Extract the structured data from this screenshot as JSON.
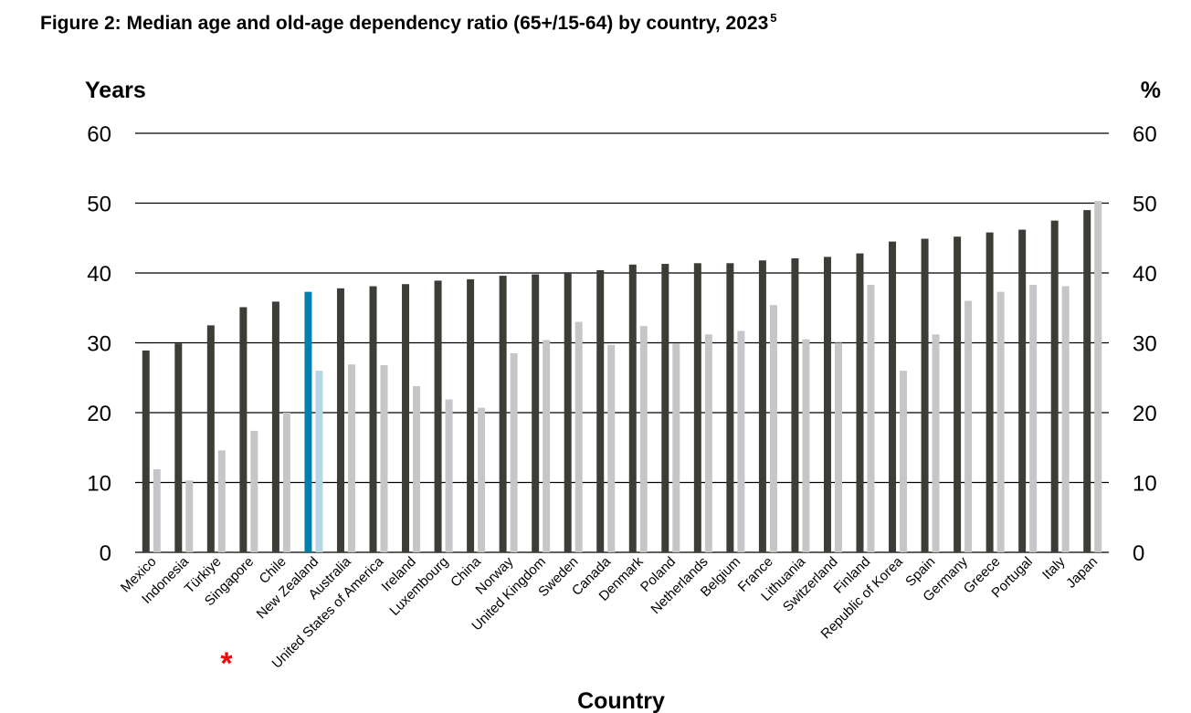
{
  "chart_data": {
    "type": "bar",
    "title": "Figure 2: Median age and old-age dependency ratio (65+/15-64) by country, 2023",
    "title_footnote": "5",
    "xlabel": "Country",
    "ylabel_left": "Years",
    "ylabel_right": "%",
    "ylim": [
      0,
      60
    ],
    "yticks": [
      0,
      10,
      20,
      30,
      40,
      50,
      60
    ],
    "grid": true,
    "legend": "none",
    "highlight_category": "New Zealand",
    "highlight_marker": "*",
    "categories": [
      "Mexico",
      "Indonesia",
      "Türkiye",
      "Singapore",
      "Chile",
      "New Zealand",
      "Australia",
      "United States of America",
      "Ireland",
      "Luxembourg",
      "China",
      "Norway",
      "United Kingdom",
      "Sweden",
      "Canada",
      "Denmark",
      "Poland",
      "Netherlands",
      "Belgium",
      "France",
      "Lithuania",
      "Switzerland",
      "Finland",
      "Republic of Korea",
      "Spain",
      "Germany",
      "Greece",
      "Portugal",
      "Italy",
      "Japan"
    ],
    "series": [
      {
        "name": "Median age (years)",
        "axis": "left",
        "color": "#3c3d37",
        "highlight_color": "#0080ab",
        "values": [
          28.9,
          29.9,
          32.5,
          35.1,
          35.9,
          37.3,
          37.8,
          38.1,
          38.4,
          38.9,
          39.1,
          39.6,
          39.8,
          40.1,
          40.4,
          41.2,
          41.3,
          41.4,
          41.4,
          41.8,
          42.1,
          42.3,
          42.8,
          44.5,
          44.9,
          45.2,
          45.8,
          46.2,
          47.5,
          49.0
        ]
      },
      {
        "name": "Old-age dependency ratio (%)",
        "axis": "right",
        "color": "#c6c6c6",
        "highlight_color": "#b4d7e1",
        "values": [
          11.9,
          10.3,
          14.6,
          17.4,
          20.0,
          26.0,
          26.9,
          26.8,
          23.8,
          21.9,
          20.7,
          28.5,
          30.4,
          33.0,
          29.7,
          32.4,
          29.9,
          31.2,
          31.7,
          35.4,
          30.5,
          30.0,
          38.3,
          26.0,
          31.2,
          36.0,
          37.3,
          38.3,
          38.1,
          50.3
        ]
      }
    ]
  }
}
